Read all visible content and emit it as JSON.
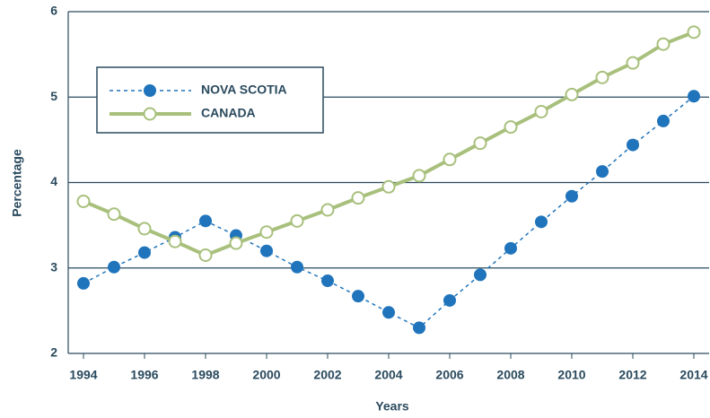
{
  "chart_data": {
    "type": "line",
    "xlabel": "Years",
    "ylabel": "Percentage",
    "x": [
      1994,
      1995,
      1996,
      1997,
      1998,
      1999,
      2000,
      2001,
      2002,
      2003,
      2004,
      2005,
      2006,
      2007,
      2008,
      2009,
      2010,
      2011,
      2012,
      2013,
      2014
    ],
    "series": [
      {
        "name": "NOVA SCOTIA",
        "color": "#1f74bb",
        "values": [
          2.82,
          3.01,
          3.18,
          3.36,
          3.55,
          3.38,
          3.2,
          3.01,
          2.85,
          2.67,
          2.48,
          2.3,
          2.62,
          2.92,
          3.23,
          3.54,
          3.84,
          4.13,
          4.44,
          4.72,
          5.01
        ]
      },
      {
        "name": "CANADA",
        "color": "#a8c07c",
        "values": [
          3.78,
          3.63,
          3.46,
          3.31,
          3.15,
          3.29,
          3.42,
          3.55,
          3.68,
          3.82,
          3.95,
          4.08,
          4.27,
          4.46,
          4.65,
          4.83,
          5.03,
          5.23,
          5.4,
          5.62,
          5.76
        ]
      }
    ],
    "xlim": [
      1993.5,
      2014.5
    ],
    "xticks": [
      1994,
      1996,
      1998,
      2000,
      2002,
      2004,
      2006,
      2008,
      2010,
      2012,
      2014
    ],
    "ylim": [
      2,
      6
    ],
    "yticks": [
      2,
      3,
      4,
      5,
      6
    ],
    "grid": true,
    "legend": "upper left"
  }
}
